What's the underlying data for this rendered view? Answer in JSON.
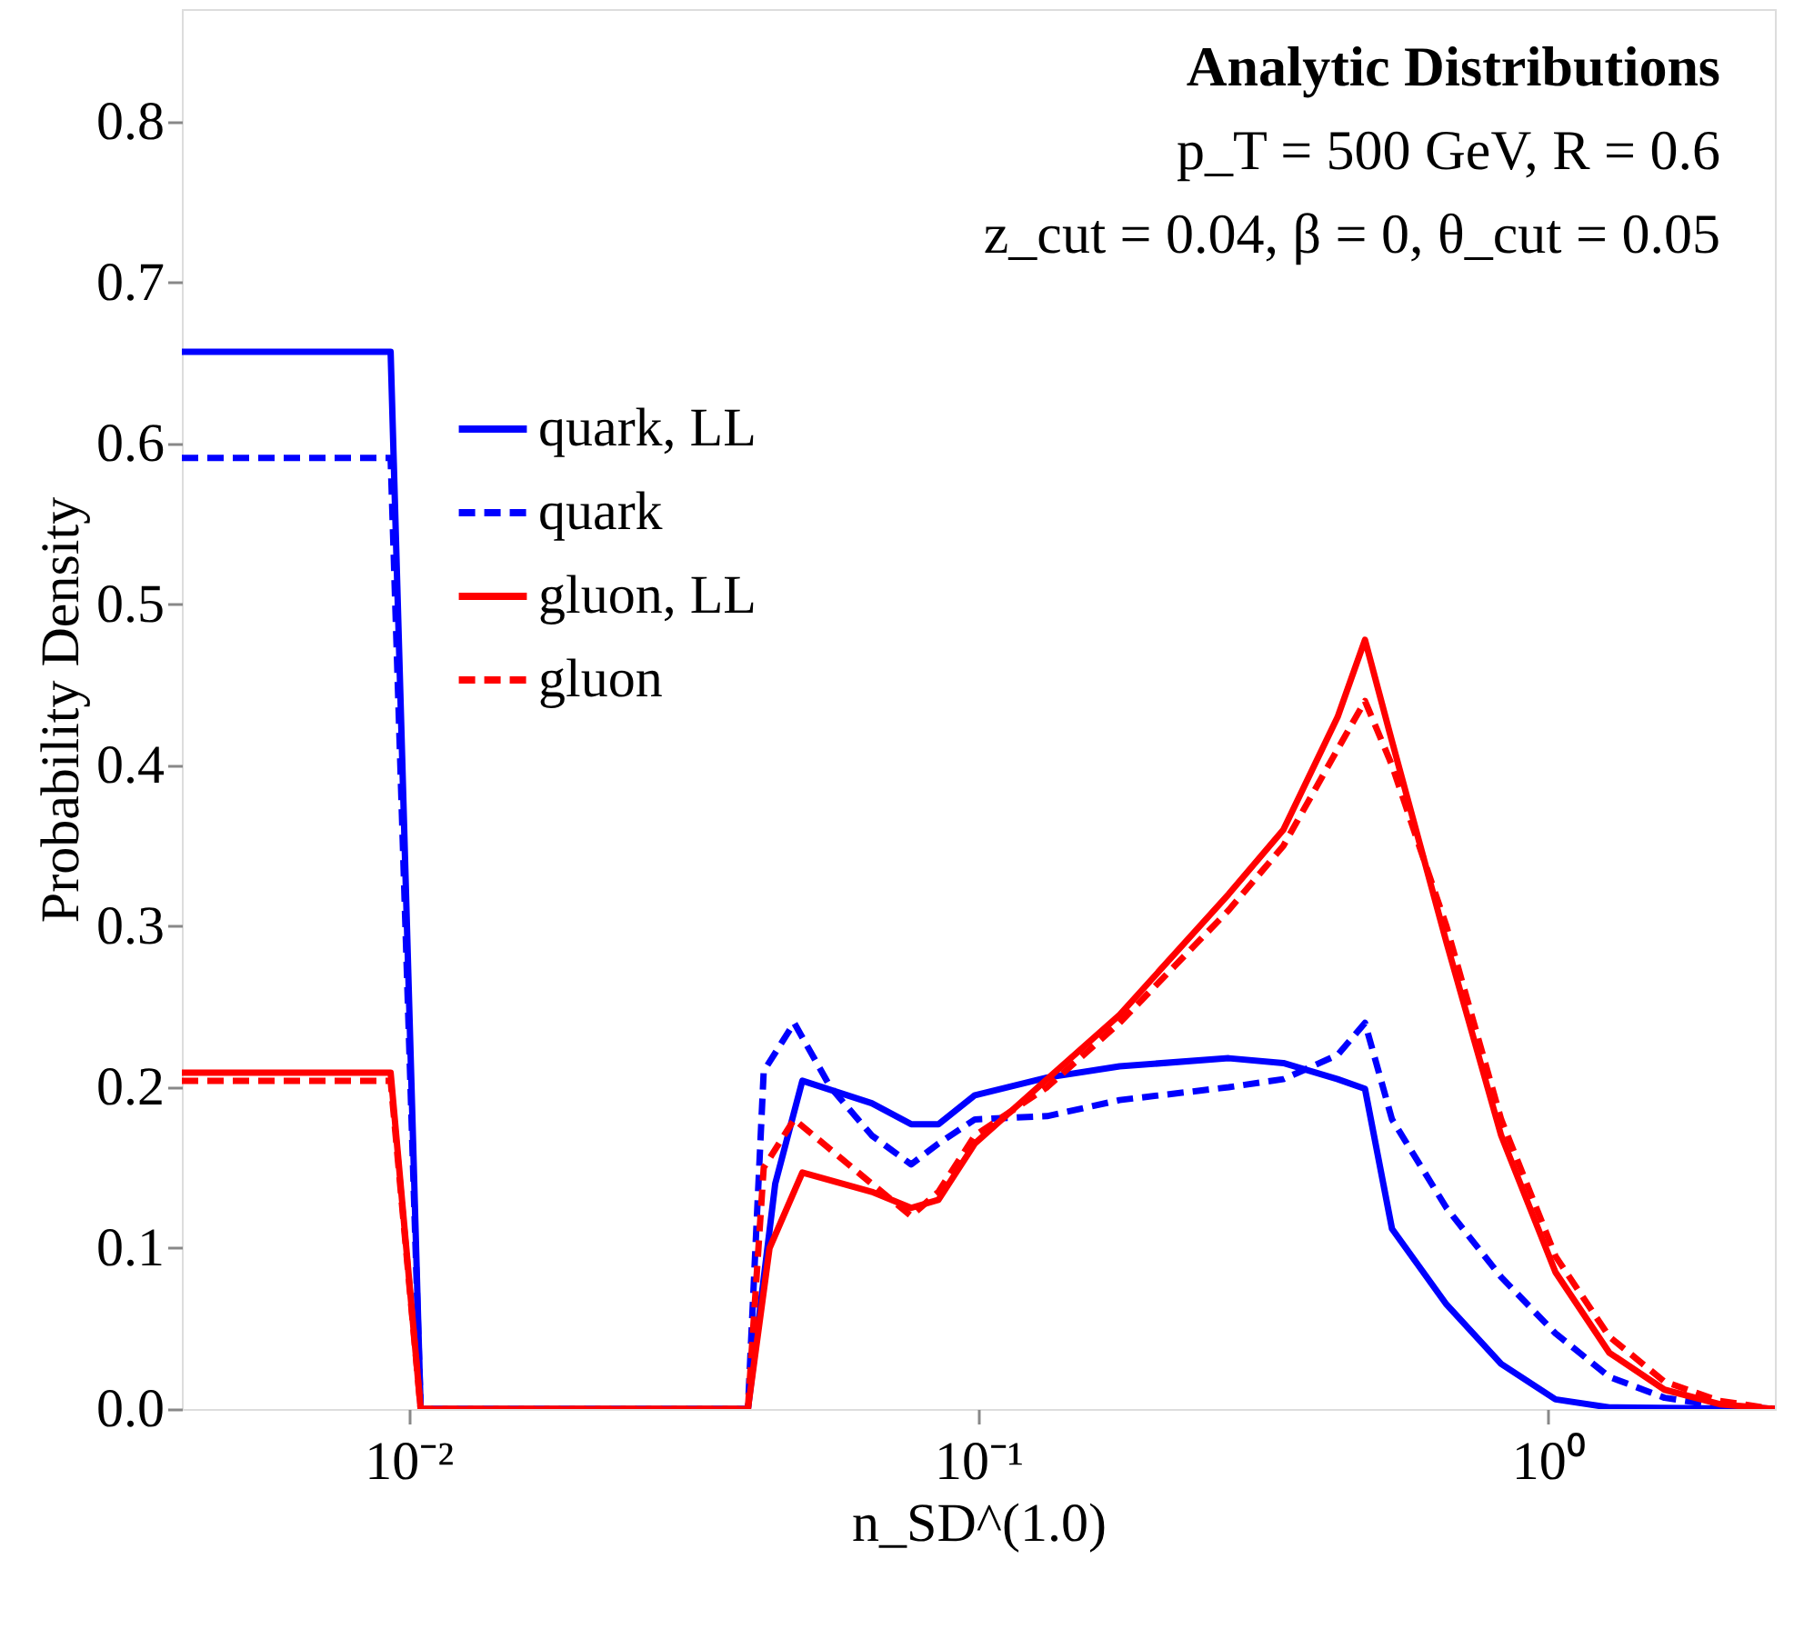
{
  "chart_data": {
    "type": "line",
    "title": "Analytic Distributions",
    "subtitle": [
      "p_T = 500 GeV, R = 0.6",
      "z_cut = 0.04, β = 0, θ_cut = 0.05"
    ],
    "xlabel": "n_SD^(1.0)",
    "ylabel": "Probability Density",
    "log": "x",
    "grid": false,
    "legend": "top left",
    "marker": "none",
    "xlim": [
      0.004,
      2.5
    ],
    "xticks": [
      {
        "value": 0.01,
        "label": "10⁻²"
      },
      {
        "value": 0.1,
        "label": "10⁻¹"
      },
      {
        "value": 1,
        "label": "10⁰"
      }
    ],
    "ylim": [
      0,
      0.87
    ],
    "yticks": [
      {
        "value": 0,
        "label": "0.0"
      },
      0.1,
      0.2,
      0.3,
      0.4,
      0.5,
      0.6,
      0.7,
      0.8
    ],
    "series": [
      {
        "name": "quark, LL",
        "color": "#0000ff",
        "line_style": "solid",
        "x": [
          0.004,
          0.0093,
          0.0105,
          0.0394,
          0.044,
          0.0491,
          0.065,
          0.0762,
          0.0851,
          0.0986,
          0.132,
          0.177,
          0.275,
          0.343,
          0.427,
          0.477,
          0.532,
          0.663,
          0.827,
          1.03,
          1.28,
          2.5
        ],
        "values": [
          0.657,
          0.657,
          0,
          0,
          0.14,
          0.204,
          0.19,
          0.177,
          0.177,
          0.195,
          0.206,
          0.213,
          0.218,
          0.215,
          0.205,
          0.199,
          0.112,
          0.065,
          0.028,
          0.006,
          0.001,
          0
        ]
      },
      {
        "name": "quark",
        "color": "#0000ff",
        "line_style": "dashed",
        "x": [
          0.004,
          0.0093,
          0.0105,
          0.0394,
          0.042,
          0.0475,
          0.055,
          0.065,
          0.0762,
          0.0851,
          0.0986,
          0.132,
          0.177,
          0.275,
          0.343,
          0.427,
          0.477,
          0.532,
          0.663,
          0.827,
          1.03,
          1.28,
          1.6,
          2.0,
          2.5
        ],
        "values": [
          0.591,
          0.591,
          0,
          0,
          0.21,
          0.24,
          0.2,
          0.17,
          0.152,
          0.165,
          0.18,
          0.182,
          0.192,
          0.2,
          0.205,
          0.22,
          0.24,
          0.18,
          0.125,
          0.082,
          0.047,
          0.02,
          0.007,
          0.002,
          0
        ]
      },
      {
        "name": "gluon, LL",
        "color": "#ff0000",
        "line_style": "solid",
        "x": [
          0.004,
          0.0093,
          0.0105,
          0.0394,
          0.043,
          0.0491,
          0.065,
          0.0762,
          0.0851,
          0.0986,
          0.132,
          0.177,
          0.275,
          0.343,
          0.427,
          0.477,
          0.532,
          0.663,
          0.827,
          1.03,
          1.28,
          1.6,
          2.0,
          2.5
        ],
        "values": [
          0.209,
          0.209,
          0,
          0,
          0.1,
          0.147,
          0.135,
          0.125,
          0.13,
          0.165,
          0.205,
          0.245,
          0.32,
          0.36,
          0.43,
          0.478,
          0.415,
          0.29,
          0.17,
          0.085,
          0.035,
          0.012,
          0.003,
          0
        ]
      },
      {
        "name": "gluon",
        "color": "#ff0000",
        "line_style": "dashed",
        "x": [
          0.004,
          0.0093,
          0.0105,
          0.0394,
          0.042,
          0.0475,
          0.065,
          0.0762,
          0.0851,
          0.0986,
          0.132,
          0.177,
          0.275,
          0.343,
          0.427,
          0.477,
          0.532,
          0.663,
          0.827,
          1.03,
          1.28,
          1.6,
          2.0,
          2.5
        ],
        "values": [
          0.204,
          0.204,
          0,
          0,
          0.15,
          0.18,
          0.14,
          0.12,
          0.135,
          0.17,
          0.2,
          0.24,
          0.31,
          0.35,
          0.41,
          0.44,
          0.4,
          0.3,
          0.18,
          0.095,
          0.045,
          0.017,
          0.005,
          0
        ]
      }
    ]
  }
}
